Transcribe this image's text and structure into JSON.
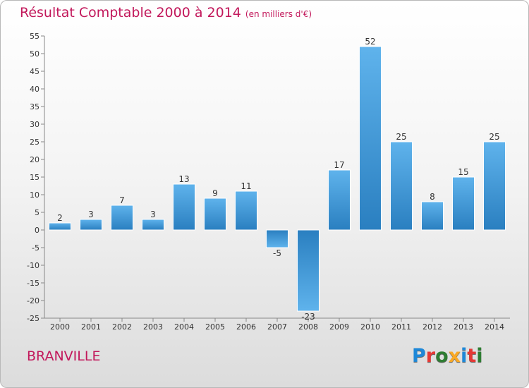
{
  "title": {
    "main": "Résultat Comptable 2000 à 2014",
    "unit": "(en milliers d'€)"
  },
  "town": "BRANVILLE",
  "logo": {
    "letters": [
      "P",
      "r",
      "o",
      "x",
      "i",
      "t",
      "i"
    ],
    "colors": [
      "#1e88d8",
      "#e53935",
      "#2e7d32",
      "#f9a825",
      "#1e88d8",
      "#e53935",
      "#2e7d32"
    ]
  },
  "colors": {
    "bar_top": "#5fb3ec",
    "bar_bottom": "#2a7fc0",
    "title": "#c2185b"
  },
  "chart_data": {
    "type": "bar",
    "title": "Résultat Comptable 2000 à 2014",
    "xlabel": "",
    "ylabel": "",
    "categories": [
      "2000",
      "2001",
      "2002",
      "2003",
      "2004",
      "2005",
      "2006",
      "2007",
      "2008",
      "2009",
      "2010",
      "2011",
      "2012",
      "2013",
      "2014"
    ],
    "values": [
      2,
      3,
      7,
      3,
      13,
      9,
      11,
      -5,
      -23,
      17,
      52,
      25,
      8,
      15,
      25
    ],
    "ylim": [
      -25,
      55
    ],
    "yticks": [
      -25,
      -20,
      -15,
      -10,
      -5,
      0,
      5,
      10,
      15,
      20,
      25,
      30,
      35,
      40,
      45,
      50,
      55
    ],
    "grid": false,
    "legend": "none"
  }
}
